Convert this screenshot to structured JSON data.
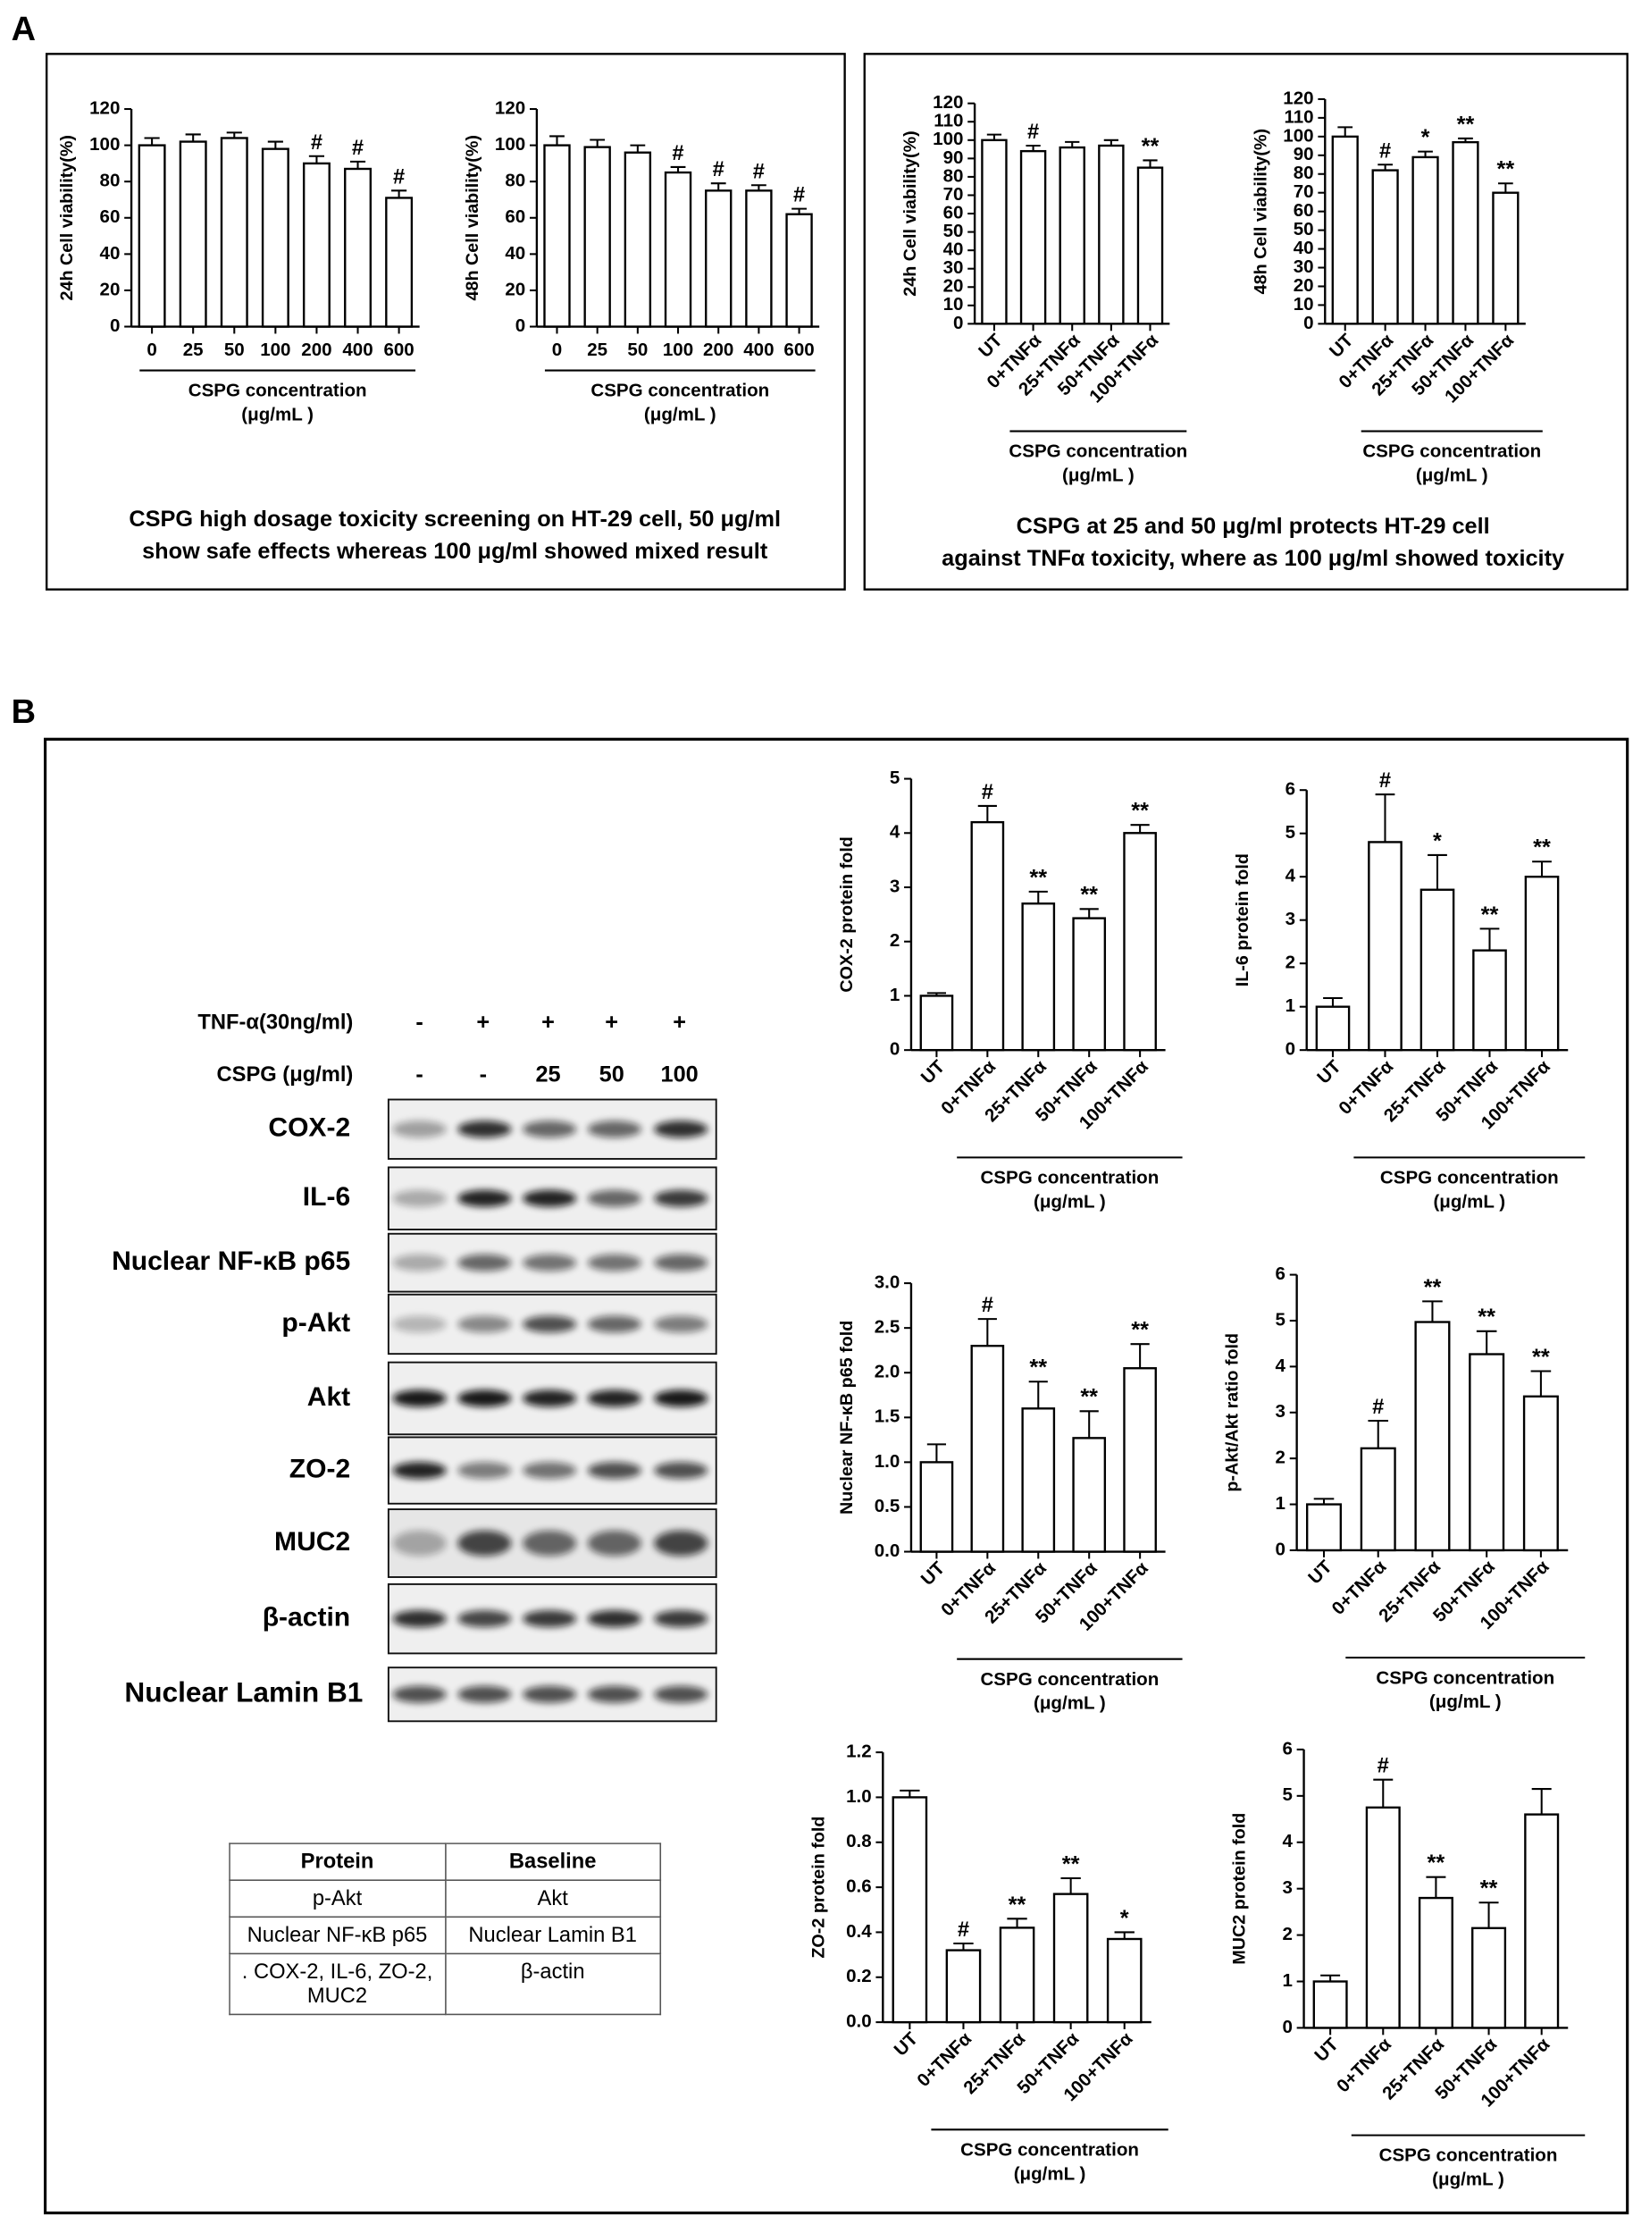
{
  "panel_labels": [
    "A",
    "B"
  ],
  "captions": [
    [
      "CSPG high dosage toxicity screening on HT-29 cell, 50 μg/ml",
      "show safe effects whereas 100 μg/ml showed mixed result"
    ],
    [
      "CSPG at 25 and 50 μg/ml protects HT-29 cell",
      "against TNFα toxicity, where as 100 μg/ml showed toxicity"
    ]
  ],
  "blot": {
    "rows": [
      {
        "label": "TNF-α(30ng/ml)",
        "lanes": [
          "-",
          "+",
          "+",
          "+",
          "+"
        ]
      },
      {
        "label": "CSPG (μg/ml)",
        "lanes": [
          "-",
          "-",
          "25",
          "50",
          "100"
        ]
      }
    ],
    "bands": [
      "COX-2",
      "IL-6",
      "Nuclear NF-κB p65",
      "p-Akt",
      "Akt",
      "ZO-2",
      "MUC2",
      "β-actin",
      "Nuclear Lamin B1"
    ]
  },
  "table": {
    "header": [
      "Protein",
      "Baseline"
    ],
    "rows": [
      [
        "p-Akt",
        "Akt"
      ],
      [
        "Nuclear NF-κB p65",
        "Nuclear Lamin B1"
      ],
      [
        ". COX-2, IL-6, ZO-2, MUC2",
        "β-actin"
      ]
    ]
  },
  "chart_data": [
    {
      "type": "bar",
      "ylabel": "24h Cell viability(%)",
      "xlabel": [
        "CSPG concentration",
        "(μg/mL )"
      ],
      "categories": [
        "0",
        "25",
        "50",
        "100",
        "200",
        "400",
        "600"
      ],
      "values": [
        100,
        102,
        104,
        98,
        90,
        87,
        71
      ],
      "errors": [
        4,
        4,
        3,
        4,
        4,
        4,
        4
      ],
      "annotations": [
        null,
        null,
        null,
        null,
        "#",
        "#",
        "#"
      ],
      "ylim": [
        0,
        120
      ],
      "yticks": [
        0,
        20,
        40,
        60,
        80,
        100,
        120
      ]
    },
    {
      "type": "bar",
      "ylabel": "48h Cell viability(%)",
      "xlabel": [
        "CSPG concentration",
        "(μg/mL )"
      ],
      "categories": [
        "0",
        "25",
        "50",
        "100",
        "200",
        "400",
        "600"
      ],
      "values": [
        100,
        99,
        96,
        85,
        75,
        75,
        62
      ],
      "errors": [
        5,
        4,
        4,
        3,
        4,
        3,
        3
      ],
      "annotations": [
        null,
        null,
        null,
        "#",
        "#",
        "#",
        "#"
      ],
      "ylim": [
        0,
        120
      ],
      "yticks": [
        0,
        20,
        40,
        60,
        80,
        100,
        120
      ]
    },
    {
      "type": "bar",
      "ylabel": "24h Cell viability(%)",
      "xlabel": [
        "CSPG concentration",
        "(μg/mL )"
      ],
      "categories": [
        "UT",
        "0+TNFα",
        "25+TNFα",
        "50+TNFα",
        "100+TNFα"
      ],
      "values": [
        100,
        94,
        96,
        97,
        85
      ],
      "errors": [
        3,
        3,
        3,
        3,
        4
      ],
      "annotations": [
        null,
        "#",
        null,
        null,
        "**"
      ],
      "ylim": [
        0,
        120
      ],
      "yticks": [
        0,
        10,
        20,
        30,
        40,
        50,
        60,
        70,
        80,
        90,
        100,
        110,
        120
      ]
    },
    {
      "type": "bar",
      "ylabel": "48h Cell viability(%)",
      "xlabel": [
        "CSPG concentration",
        "(μg/mL )"
      ],
      "categories": [
        "UT",
        "0+TNFα",
        "25+TNFα",
        "50+TNFα",
        "100+TNFα"
      ],
      "values": [
        100,
        82,
        89,
        97,
        70
      ],
      "errors": [
        5,
        3,
        3,
        2,
        5
      ],
      "annotations": [
        null,
        "#",
        "*",
        "**",
        "**"
      ],
      "ylim": [
        0,
        120
      ],
      "yticks": [
        0,
        10,
        20,
        30,
        40,
        50,
        60,
        70,
        80,
        90,
        100,
        110,
        120
      ]
    },
    {
      "type": "bar",
      "ylabel": "COX-2 protein fold",
      "xlabel": [
        "CSPG concentration",
        "(μg/mL )"
      ],
      "categories": [
        "UT",
        "0+TNFα",
        "25+TNFα",
        "50+TNFα",
        "100+TNFα"
      ],
      "values": [
        1,
        4.2,
        2.7,
        2.43,
        4.0
      ],
      "errors": [
        0.05,
        0.3,
        0.22,
        0.17,
        0.15
      ],
      "annotations": [
        null,
        "#",
        "**",
        "**",
        "**"
      ],
      "ylim": [
        0,
        5
      ],
      "yticks": [
        0,
        1,
        2,
        3,
        4,
        5
      ]
    },
    {
      "type": "bar",
      "ylabel": "IL-6 protein fold",
      "xlabel": [
        "CSPG concentration",
        "(μg/mL )"
      ],
      "categories": [
        "UT",
        "0+TNFα",
        "25+TNFα",
        "50+TNFα",
        "100+TNFα"
      ],
      "values": [
        1,
        4.8,
        3.7,
        2.3,
        4.0
      ],
      "errors": [
        0.2,
        1.1,
        0.8,
        0.5,
        0.35
      ],
      "annotations": [
        null,
        "#",
        "*",
        "**",
        "**"
      ],
      "ylim": [
        0,
        6
      ],
      "yticks": [
        0,
        1,
        2,
        3,
        4,
        5,
        6
      ]
    },
    {
      "type": "bar",
      "ylabel": "Nuclear NF-κB p65 fold",
      "xlabel": [
        "CSPG concentration",
        "(μg/mL )"
      ],
      "categories": [
        "UT",
        "0+TNFα",
        "25+TNFα",
        "50+TNFα",
        "100+TNFα"
      ],
      "values": [
        1,
        2.3,
        1.6,
        1.27,
        2.05
      ],
      "errors": [
        0.2,
        0.3,
        0.3,
        0.3,
        0.27
      ],
      "annotations": [
        null,
        "#",
        "**",
        "**",
        "**"
      ],
      "ylim": [
        0,
        3
      ],
      "yticks": [
        {
          "value": 0,
          "label": "0.0"
        },
        0.5,
        {
          "value": 1,
          "label": "1.0"
        },
        1.5,
        {
          "value": 2,
          "label": "2.0"
        },
        2.5,
        {
          "value": 3,
          "label": "3.0"
        }
      ]
    },
    {
      "type": "bar",
      "ylabel": "p-Akt/Akt ratio fold",
      "xlabel": [
        "CSPG concentration",
        "(μg/mL )"
      ],
      "categories": [
        "UT",
        "0+TNFα",
        "25+TNFα",
        "50+TNFα",
        "100+TNFα"
      ],
      "values": [
        1,
        2.22,
        4.97,
        4.27,
        3.35
      ],
      "errors": [
        0.12,
        0.6,
        0.45,
        0.5,
        0.55
      ],
      "annotations": [
        null,
        "#",
        "**",
        "**",
        "**"
      ],
      "ylim": [
        0,
        6
      ],
      "yticks": [
        0,
        1,
        2,
        3,
        4,
        5,
        6
      ]
    },
    {
      "type": "bar",
      "ylabel": "ZO-2 protein fold",
      "xlabel": [
        "CSPG concentration",
        "(μg/mL )"
      ],
      "categories": [
        "UT",
        "0+TNFα",
        "25+TNFα",
        "50+TNFα",
        "100+TNFα"
      ],
      "values": [
        1.0,
        0.32,
        0.42,
        0.57,
        0.37
      ],
      "errors": [
        0.03,
        0.03,
        0.04,
        0.07,
        0.03
      ],
      "annotations": [
        null,
        "#",
        "**",
        "**",
        "*"
      ],
      "ylim": [
        0,
        1.2
      ],
      "yticks": [
        {
          "value": 0,
          "label": "0.0"
        },
        0.2,
        0.4,
        0.6,
        0.8,
        {
          "value": 1,
          "label": "1.0"
        },
        1.2
      ]
    },
    {
      "type": "bar",
      "ylabel": "MUC2 protein fold",
      "xlabel": [
        "CSPG concentration",
        "(μg/mL )"
      ],
      "categories": [
        "UT",
        "0+TNFα",
        "25+TNFα",
        "50+TNFα",
        "100+TNFα"
      ],
      "values": [
        1,
        4.75,
        2.8,
        2.15,
        4.6
      ],
      "errors": [
        0.13,
        0.6,
        0.45,
        0.55,
        0.55
      ],
      "annotations": [
        null,
        "#",
        "**",
        "**",
        null
      ],
      "ylim": [
        0,
        6
      ],
      "yticks": [
        0,
        1,
        2,
        3,
        4,
        5,
        6
      ]
    }
  ]
}
